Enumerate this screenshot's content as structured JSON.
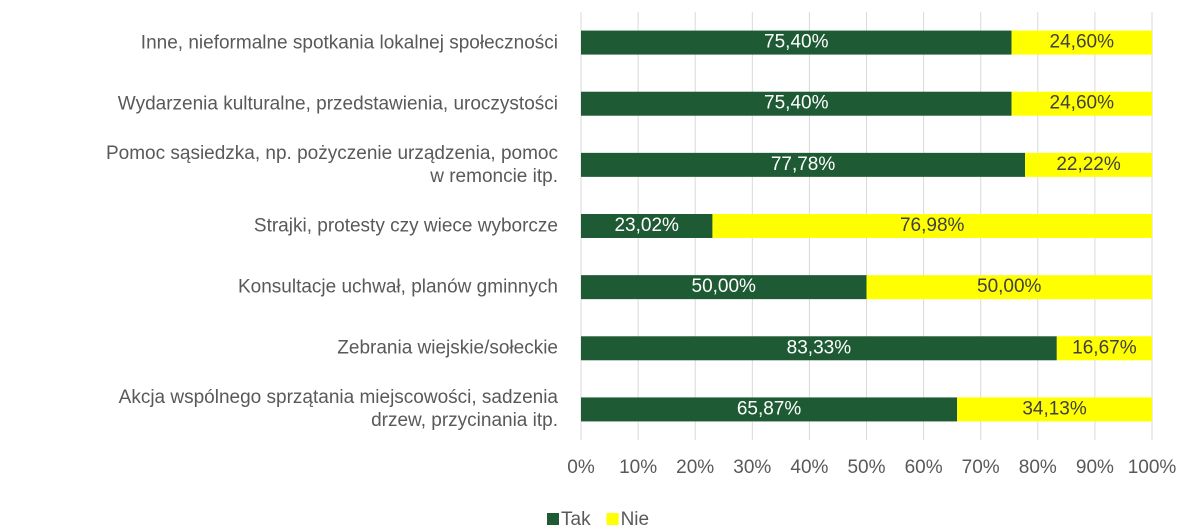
{
  "chart_data": {
    "type": "stacked-barh",
    "categories": [
      "Inne, nieformalne spotkania lokalnej społeczności",
      "Wydarzenia kulturalne, przedstawienia, uroczystości",
      "Pomoc sąsiedzka, np. pożyczenie urządzenia, pomoc\nw remoncie itp.",
      "Strajki, protesty czy wiece wyborcze",
      "Konsultacje uchwał, planów gminnych",
      "Zebrania wiejskie/sołeckie",
      "Akcja wspólnego sprzątania miejscowości, sadzenia\ndrzew, przycinania itp."
    ],
    "series": [
      {
        "name": "Tak",
        "color": "#1e5a34",
        "values": [
          75.4,
          75.4,
          77.78,
          23.02,
          50,
          83.33,
          65.87
        ],
        "value_labels": [
          "75,40%",
          "75,40%",
          "77,78%",
          "23,02%",
          "50,00%",
          "83,33%",
          "65,87%"
        ]
      },
      {
        "name": "Nie",
        "color": "#ffff00",
        "values": [
          24.6,
          24.6,
          22.22,
          76.98,
          50,
          16.67,
          34.13
        ],
        "value_labels": [
          "24,60%",
          "24,60%",
          "22,22%",
          "76,98%",
          "50,00%",
          "16,67%",
          "34,13%"
        ]
      }
    ],
    "xlim": [
      0,
      100
    ],
    "xticks": [
      {
        "value": 0,
        "label": "0%"
      },
      {
        "value": 10,
        "label": "10%"
      },
      {
        "value": 20,
        "label": "20%"
      },
      {
        "value": 30,
        "label": "30%"
      },
      {
        "value": 40,
        "label": "40%"
      },
      {
        "value": 50,
        "label": "50%"
      },
      {
        "value": 60,
        "label": "60%"
      },
      {
        "value": 70,
        "label": "70%"
      },
      {
        "value": 80,
        "label": "80%"
      },
      {
        "value": 90,
        "label": "90%"
      },
      {
        "value": 100,
        "label": "100%"
      }
    ],
    "grid": true,
    "legend": "bottom"
  }
}
